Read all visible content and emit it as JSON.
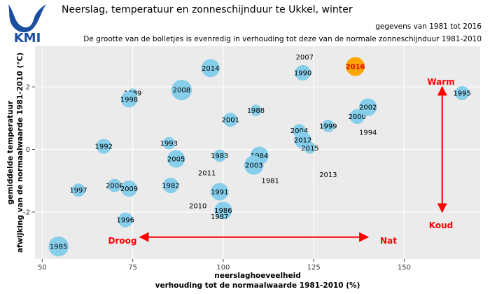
{
  "header": {
    "logo_text": "KMI",
    "title": "Neerslag, temperatuur en zonneschijnduur te Ukkel, winter",
    "subtitle_period": "gegevens van 1981 tot 2016",
    "subtitle_note": "De grootte van de bolletjes is evenredig in verhouding tot deze van de normale zonneschijnduur 1981-2010"
  },
  "colors": {
    "panel_bg": "#ebebeb",
    "grid": "#ffffff",
    "bubble": "#87ceeb",
    "bubble_highlight": "#ffa500",
    "annotation": "#ff0000",
    "logo": "#1a4fa0"
  },
  "chart_data": {
    "type": "scatter",
    "title": "Neerslag, temperatuur en zonneschijnduur te Ukkel, winter",
    "xlabel_line1": "neerslaghoeveelheid",
    "xlabel_line2": "verhouding tot de normaalwaarde 1981-2010 (%)",
    "ylabel_line1": "gemiddelde temperatuur",
    "ylabel_line2": "afwijking van de normaalwaarde 1981-2010 (°C)",
    "xlim": [
      48,
      171
    ],
    "ylim": [
      -3.5,
      3.3
    ],
    "xticks": [
      50,
      75,
      100,
      125,
      150
    ],
    "yticks": [
      -2,
      0,
      2
    ],
    "ytick_labels": [
      "-2",
      "0",
      "2"
    ],
    "grid": true,
    "size_encoding": "zonneschijnduur t.o.v. normaal",
    "points": [
      {
        "year": "1981",
        "x": 113,
        "y": -1.0,
        "size": 0
      },
      {
        "year": "1982",
        "x": 85.5,
        "y": -1.15,
        "size": 0.55
      },
      {
        "year": "1983",
        "x": 99,
        "y": -0.2,
        "size": 0.35
      },
      {
        "year": "1984",
        "x": 110,
        "y": -0.2,
        "size": 0.75
      },
      {
        "year": "1985",
        "x": 54.5,
        "y": -3.1,
        "size": 0.9
      },
      {
        "year": "1986",
        "x": 100,
        "y": -1.95,
        "size": 0.7
      },
      {
        "year": "1987",
        "x": 99,
        "y": -2.15,
        "size": 0
      },
      {
        "year": "1988",
        "x": 109,
        "y": 1.25,
        "size": 0.3
      },
      {
        "year": "1989",
        "x": 75,
        "y": 1.8,
        "size": 0.2
      },
      {
        "year": "1990",
        "x": 122,
        "y": 2.45,
        "size": 0.55
      },
      {
        "year": "1991",
        "x": 99,
        "y": -1.35,
        "size": 0.7
      },
      {
        "year": "1992",
        "x": 67,
        "y": 0.1,
        "size": 0.5
      },
      {
        "year": "1993",
        "x": 85,
        "y": 0.2,
        "size": 0.35
      },
      {
        "year": "1994",
        "x": 140,
        "y": 0.55,
        "size": 0
      },
      {
        "year": "1995",
        "x": 166,
        "y": 1.8,
        "size": 0.45
      },
      {
        "year": "1996",
        "x": 73,
        "y": -2.25,
        "size": 0.5
      },
      {
        "year": "1997",
        "x": 60,
        "y": -1.3,
        "size": 0.4
      },
      {
        "year": "1998",
        "x": 74,
        "y": 1.6,
        "size": 0.6
      },
      {
        "year": "1999",
        "x": 129,
        "y": 0.75,
        "size": 0.35
      },
      {
        "year": "2000",
        "x": 137,
        "y": 1.05,
        "size": 0.5
      },
      {
        "year": "2001",
        "x": 102,
        "y": 0.95,
        "size": 0.45
      },
      {
        "year": "2002",
        "x": 140,
        "y": 1.35,
        "size": 0.7
      },
      {
        "year": "2003",
        "x": 108.5,
        "y": -0.5,
        "size": 0.85
      },
      {
        "year": "2004",
        "x": 121,
        "y": 0.6,
        "size": 0.4
      },
      {
        "year": "2005",
        "x": 87,
        "y": -0.3,
        "size": 0.7
      },
      {
        "year": "2006",
        "x": 70,
        "y": -1.15,
        "size": 0.4
      },
      {
        "year": "2007",
        "x": 122.5,
        "y": 2.95,
        "size": 0
      },
      {
        "year": "2008",
        "x": 88.5,
        "y": 1.9,
        "size": 0.95
      },
      {
        "year": "2009",
        "x": 74,
        "y": -1.25,
        "size": 0.6
      },
      {
        "year": "2010",
        "x": 93,
        "y": -1.8,
        "size": 0
      },
      {
        "year": "2011",
        "x": 95.5,
        "y": -0.75,
        "size": 0
      },
      {
        "year": "2012",
        "x": 122,
        "y": 0.3,
        "size": 0.65
      },
      {
        "year": "2013",
        "x": 129,
        "y": -0.8,
        "size": 0
      },
      {
        "year": "2014",
        "x": 96.5,
        "y": 2.6,
        "size": 0.75
      },
      {
        "year": "2015",
        "x": 124,
        "y": 0.05,
        "size": 0.3
      },
      {
        "year": "2016",
        "x": 136.5,
        "y": 2.65,
        "size": 0.8,
        "highlight": true
      }
    ],
    "annotations": {
      "warm": "Warm",
      "koud": "Koud",
      "droog": "Droog",
      "nat": "Nat"
    },
    "arrows": {
      "vertical": {
        "x": 160.5,
        "y_from": 2.0,
        "y_to": -2.0
      },
      "horizontal": {
        "y": -2.8,
        "x_from": 77,
        "x_to": 140
      }
    }
  }
}
